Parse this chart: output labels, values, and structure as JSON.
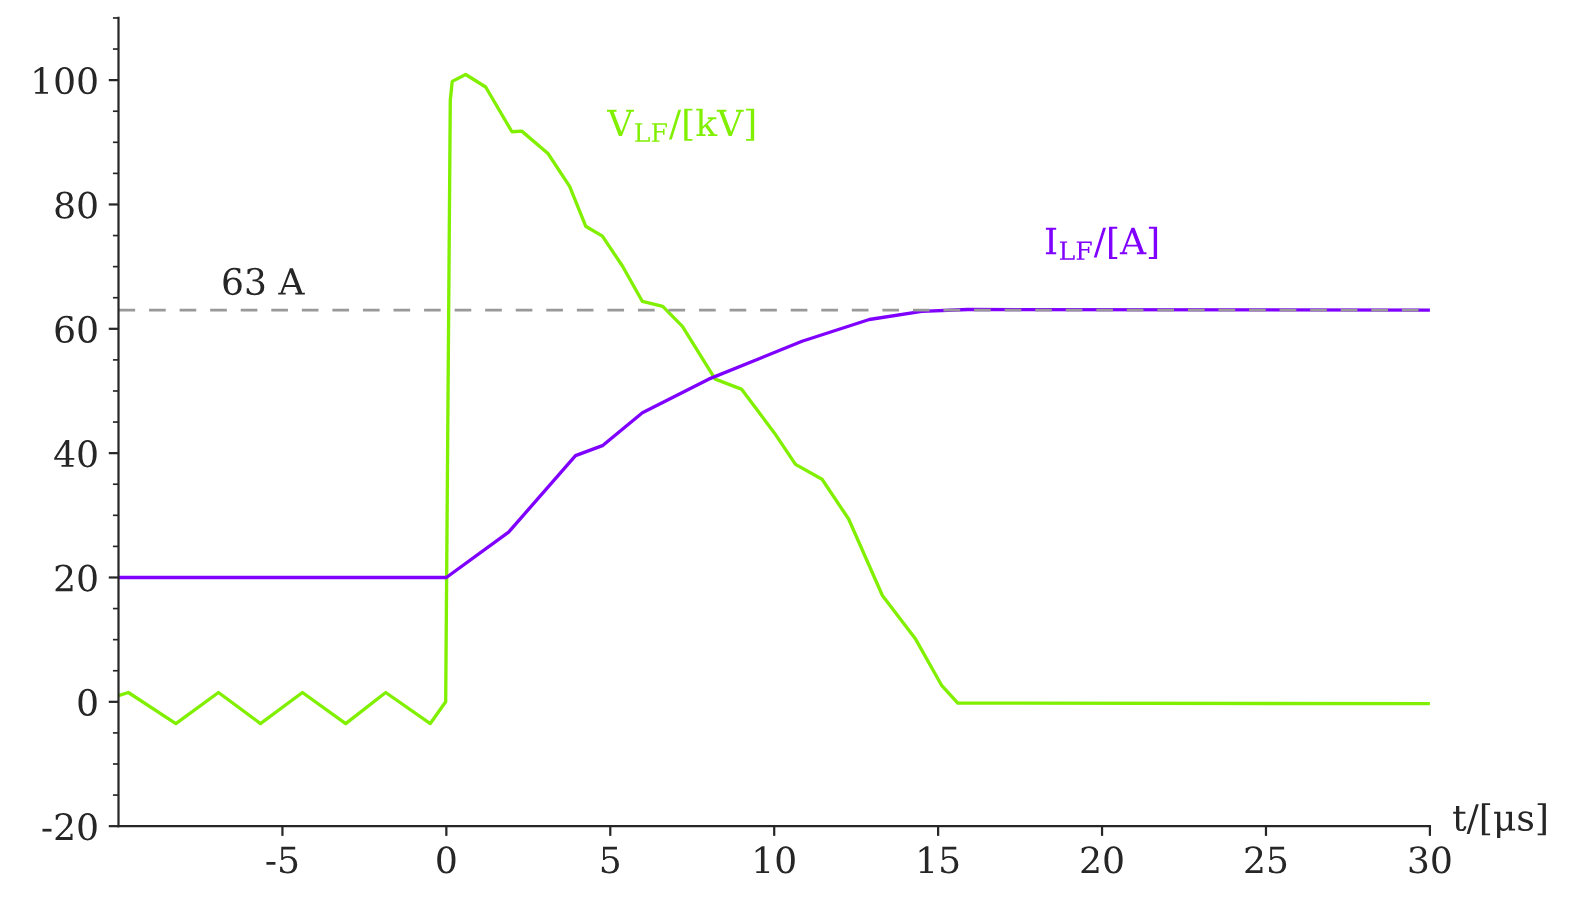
{
  "chart_data": {
    "type": "line",
    "xlabel": "t/[μs]",
    "xlim": [
      -10,
      30
    ],
    "xticks": [
      -5,
      0,
      5,
      10,
      15,
      20,
      25,
      30
    ],
    "ylim": [
      -20,
      110
    ],
    "yticks": [
      -20,
      0,
      20,
      40,
      60,
      80,
      100
    ],
    "grid": false,
    "legend": false,
    "marker": "none",
    "line_style": "solid",
    "ref_lines": [
      {
        "axis": "y",
        "value": 63,
        "label": "63 A",
        "color": "#999999",
        "line_style": "dashed"
      }
    ],
    "series": [
      {
        "name": "V$_{LF}$/[kV]",
        "color": "#80f000",
        "x": [
          -10,
          -9.7,
          -8.25,
          -6.95,
          -5.67,
          -4.39,
          -3.07,
          -1.85,
          -0.49,
          -0.02,
          0.12,
          0.18,
          0.59,
          1.2,
          2.0,
          2.3,
          3.1,
          3.76,
          4.25,
          4.76,
          5.37,
          5.98,
          6.6,
          7.2,
          8.2,
          9.0,
          10.0,
          10.65,
          11.46,
          12.27,
          13.3,
          14.3,
          15.1,
          15.6,
          30
        ],
        "values": [
          1,
          1.5,
          -3.5,
          1.5,
          -3.5,
          1.5,
          -3.5,
          1.5,
          -3.5,
          0,
          96.8,
          99.8,
          100.9,
          98.9,
          91.7,
          91.8,
          88.2,
          82.9,
          76.5,
          74.9,
          70.1,
          64.4,
          63.6,
          60.4,
          51.9,
          50.3,
          43.3,
          38.2,
          35.8,
          29.4,
          17.1,
          10.2,
          2.7,
          -0.2,
          -0.3
        ]
      },
      {
        "name": "I$_{LF}$/[A]",
        "color": "#7f00ff",
        "x": [
          -10,
          0,
          1.9,
          3.94,
          4.76,
          5.98,
          8.0,
          10.85,
          12.9,
          14.5,
          15.9,
          30
        ],
        "values": [
          20,
          20,
          27.3,
          39.6,
          41.2,
          46.5,
          51.9,
          58,
          61.5,
          62.8,
          63.1,
          63
        ]
      }
    ]
  }
}
